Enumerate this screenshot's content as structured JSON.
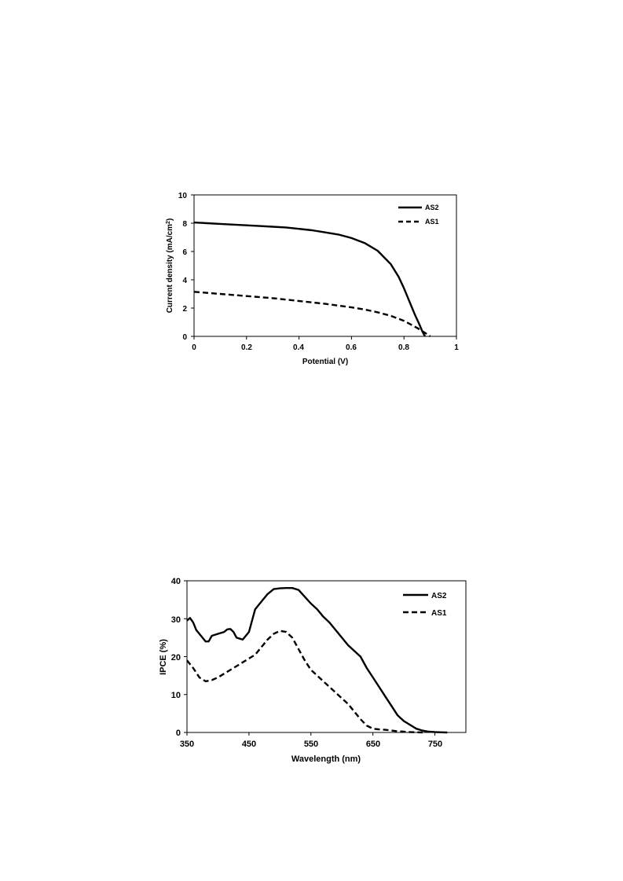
{
  "chart_data": [
    {
      "type": "line",
      "xlabel": "Potential (V)",
      "ylabel": "Current density (mA/cm",
      "ylabel_sup": "2",
      "ylabel_end": ")",
      "xlim": [
        0,
        1
      ],
      "ylim": [
        0,
        10
      ],
      "x_ticks": [
        "0",
        "0.2",
        "0.4",
        "0.6",
        "0.8",
        "1"
      ],
      "y_ticks": [
        "0",
        "2",
        "4",
        "6",
        "8",
        "10"
      ],
      "legend_position": "top-right",
      "grid": false,
      "series": [
        {
          "name": "AS2",
          "style": "solid",
          "x": [
            0,
            0.05,
            0.1,
            0.15,
            0.2,
            0.25,
            0.3,
            0.35,
            0.4,
            0.45,
            0.5,
            0.55,
            0.6,
            0.65,
            0.7,
            0.75,
            0.78,
            0.8,
            0.82,
            0.84,
            0.86,
            0.87,
            0.88
          ],
          "y": [
            8.05,
            8.0,
            7.95,
            7.9,
            7.85,
            7.8,
            7.75,
            7.7,
            7.6,
            7.5,
            7.35,
            7.2,
            6.95,
            6.6,
            6.05,
            5.1,
            4.2,
            3.4,
            2.5,
            1.6,
            0.8,
            0.35,
            0
          ]
        },
        {
          "name": "AS1",
          "style": "dashed",
          "x": [
            0,
            0.1,
            0.2,
            0.3,
            0.4,
            0.5,
            0.6,
            0.65,
            0.7,
            0.75,
            0.8,
            0.85,
            0.88,
            0.9
          ],
          "y": [
            3.15,
            3.0,
            2.85,
            2.7,
            2.5,
            2.3,
            2.05,
            1.9,
            1.7,
            1.45,
            1.1,
            0.6,
            0.25,
            0
          ]
        }
      ]
    },
    {
      "type": "line",
      "xlabel": "Wavelength (nm)",
      "ylabel": "IPCE (%)",
      "xlim": [
        350,
        800
      ],
      "ylim": [
        0,
        40
      ],
      "x_ticks": [
        "350",
        "450",
        "550",
        "650",
        "750"
      ],
      "y_ticks": [
        "0",
        "10",
        "20",
        "30",
        "40"
      ],
      "legend_position": "top-right",
      "grid": false,
      "series": [
        {
          "name": "AS2",
          "style": "solid",
          "x": [
            350,
            355,
            360,
            365,
            370,
            380,
            385,
            390,
            400,
            410,
            415,
            420,
            425,
            430,
            440,
            450,
            460,
            470,
            475,
            480,
            490,
            500,
            510,
            520,
            530,
            540,
            550,
            560,
            570,
            580,
            590,
            600,
            610,
            620,
            630,
            640,
            650,
            660,
            670,
            680,
            690,
            700,
            710,
            720,
            730,
            740,
            750,
            760,
            770
          ],
          "y": [
            29.5,
            30.2,
            29.0,
            27.0,
            26.0,
            24.0,
            24.0,
            25.5,
            26.0,
            26.5,
            27.2,
            27.3,
            26.5,
            25.0,
            24.5,
            26.5,
            32.5,
            34.5,
            35.5,
            36.5,
            37.8,
            38.0,
            38.1,
            38.1,
            37.6,
            35.8,
            34.0,
            32.5,
            30.5,
            29.0,
            27.0,
            25.0,
            23.0,
            21.5,
            20.0,
            17.0,
            14.5,
            12.0,
            9.5,
            7.0,
            4.5,
            3.0,
            2.0,
            1.0,
            0.5,
            0.2,
            0.1,
            0.05,
            0.0
          ]
        },
        {
          "name": "AS1",
          "style": "dashed",
          "x": [
            350,
            360,
            370,
            380,
            390,
            400,
            410,
            420,
            430,
            440,
            450,
            460,
            470,
            480,
            490,
            500,
            510,
            520,
            530,
            540,
            550,
            560,
            570,
            580,
            590,
            600,
            610,
            620,
            630,
            640,
            650,
            660,
            670,
            680,
            690,
            700,
            710,
            720,
            730
          ],
          "y": [
            19.0,
            17.0,
            14.5,
            13.5,
            13.8,
            14.5,
            15.5,
            16.5,
            17.5,
            18.5,
            19.5,
            20.5,
            22.5,
            24.5,
            26.0,
            26.8,
            26.5,
            25.0,
            22.0,
            19.0,
            16.5,
            15.0,
            13.5,
            12.0,
            10.5,
            9.0,
            7.5,
            5.5,
            3.5,
            1.8,
            1.0,
            0.8,
            0.7,
            0.5,
            0.3,
            0.2,
            0.1,
            0.05,
            0.0
          ]
        }
      ]
    }
  ]
}
